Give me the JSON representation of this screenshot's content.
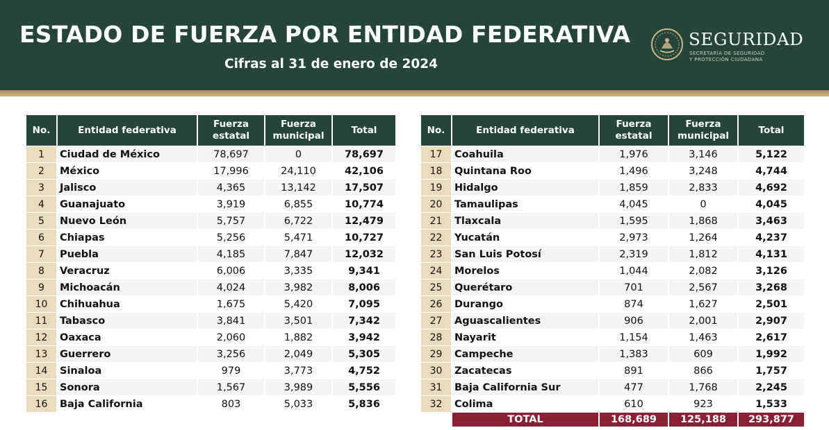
{
  "header": {
    "title": "ESTADO DE FUERZA POR ENTIDAD FEDERATIVA",
    "subtitle": "Cifras al 31 de enero de 2024"
  },
  "logo": {
    "name": "SEGURIDAD",
    "line1": "SECRETARÍA DE SEGURIDAD",
    "line2": "Y PROTECCIÓN CIUDADANA",
    "icon": "national-seal-icon"
  },
  "columns": {
    "no": "No.",
    "entidad": "Entidad federativa",
    "estatal_1": "Fuerza",
    "estatal_2": "estatal",
    "municipal_1": "Fuerza",
    "municipal_2": "municipal",
    "total": "Total"
  },
  "colors": {
    "header_green": "#25453a",
    "gold": "#cbb489",
    "number_cell": "#e9dcbb",
    "total_row": "#8a2035"
  },
  "left_rows": [
    {
      "no": "1",
      "name": "Ciudad de México",
      "estatal": "78,697",
      "municipal": "0",
      "total": "78,697"
    },
    {
      "no": "2",
      "name": "México",
      "estatal": "17,996",
      "municipal": "24,110",
      "total": "42,106"
    },
    {
      "no": "3",
      "name": "Jalisco",
      "estatal": "4,365",
      "municipal": "13,142",
      "total": "17,507"
    },
    {
      "no": "4",
      "name": "Guanajuato",
      "estatal": "3,919",
      "municipal": "6,855",
      "total": "10,774"
    },
    {
      "no": "5",
      "name": "Nuevo León",
      "estatal": "5,757",
      "municipal": "6,722",
      "total": "12,479"
    },
    {
      "no": "6",
      "name": "Chiapas",
      "estatal": "5,256",
      "municipal": "5,471",
      "total": "10,727"
    },
    {
      "no": "7",
      "name": "Puebla",
      "estatal": "4,185",
      "municipal": "7,847",
      "total": "12,032"
    },
    {
      "no": "8",
      "name": "Veracruz",
      "estatal": "6,006",
      "municipal": "3,335",
      "total": "9,341"
    },
    {
      "no": "9",
      "name": "Michoacán",
      "estatal": "4,024",
      "municipal": "3,982",
      "total": "8,006"
    },
    {
      "no": "10",
      "name": "Chihuahua",
      "estatal": "1,675",
      "municipal": "5,420",
      "total": "7,095"
    },
    {
      "no": "11",
      "name": "Tabasco",
      "estatal": "3,841",
      "municipal": "3,501",
      "total": "7,342"
    },
    {
      "no": "12",
      "name": "Oaxaca",
      "estatal": "2,060",
      "municipal": "1,882",
      "total": "3,942"
    },
    {
      "no": "13",
      "name": "Guerrero",
      "estatal": "3,256",
      "municipal": "2,049",
      "total": "5,305"
    },
    {
      "no": "14",
      "name": "Sinaloa",
      "estatal": "979",
      "municipal": "3,773",
      "total": "4,752"
    },
    {
      "no": "15",
      "name": "Sonora",
      "estatal": "1,567",
      "municipal": "3,989",
      "total": "5,556"
    },
    {
      "no": "16",
      "name": "Baja California",
      "estatal": "803",
      "municipal": "5,033",
      "total": "5,836"
    }
  ],
  "right_rows": [
    {
      "no": "17",
      "name": "Coahuila",
      "estatal": "1,976",
      "municipal": "3,146",
      "total": "5,122"
    },
    {
      "no": "18",
      "name": "Quintana Roo",
      "estatal": "1,496",
      "municipal": "3,248",
      "total": "4,744"
    },
    {
      "no": "19",
      "name": "Hidalgo",
      "estatal": "1,859",
      "municipal": "2,833",
      "total": "4,692"
    },
    {
      "no": "20",
      "name": "Tamaulipas",
      "estatal": "4,045",
      "municipal": "0",
      "total": "4,045"
    },
    {
      "no": "21",
      "name": "Tlaxcala",
      "estatal": "1,595",
      "municipal": "1,868",
      "total": "3,463"
    },
    {
      "no": "22",
      "name": "Yucatán",
      "estatal": "2,973",
      "municipal": "1,264",
      "total": "4,237"
    },
    {
      "no": "23",
      "name": "San Luis Potosí",
      "estatal": "2,319",
      "municipal": "1,812",
      "total": "4,131"
    },
    {
      "no": "24",
      "name": "Morelos",
      "estatal": "1,044",
      "municipal": "2,082",
      "total": "3,126"
    },
    {
      "no": "25",
      "name": "Querétaro",
      "estatal": "701",
      "municipal": "2,567",
      "total": "3,268"
    },
    {
      "no": "26",
      "name": "Durango",
      "estatal": "874",
      "municipal": "1,627",
      "total": "2,501"
    },
    {
      "no": "27",
      "name": "Aguascalientes",
      "estatal": "906",
      "municipal": "2,001",
      "total": "2,907"
    },
    {
      "no": "28",
      "name": "Nayarit",
      "estatal": "1,154",
      "municipal": "1,463",
      "total": "2,617"
    },
    {
      "no": "29",
      "name": "Campeche",
      "estatal": "1,383",
      "municipal": "609",
      "total": "1,992"
    },
    {
      "no": "30",
      "name": "Zacatecas",
      "estatal": "891",
      "municipal": "866",
      "total": "1,757"
    },
    {
      "no": "31",
      "name": "Baja California Sur",
      "estatal": "477",
      "municipal": "1,768",
      "total": "2,245"
    },
    {
      "no": "32",
      "name": "Colima",
      "estatal": "610",
      "municipal": "923",
      "total": "1,533"
    }
  ],
  "totals": {
    "label": "TOTAL",
    "estatal": "168,689",
    "municipal": "125,188",
    "total": "293,877"
  }
}
